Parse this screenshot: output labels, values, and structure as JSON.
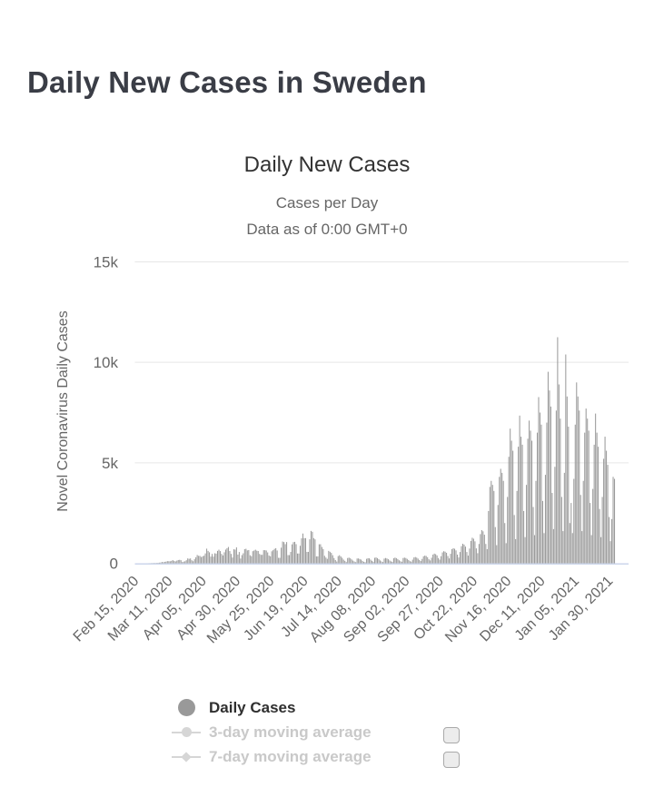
{
  "page": {
    "title": "Daily New Cases in Sweden"
  },
  "chart": {
    "title": "Daily New Cases",
    "subtitle1": "Cases per Day",
    "subtitle2": "Data as of 0:00 GMT+0",
    "y_axis_title": "Novel Coronavirus Daily Cases"
  },
  "legend": {
    "items": [
      {
        "label": "Daily Cases",
        "marker": "circle",
        "enabled": true
      },
      {
        "label": "3-day moving average",
        "marker": "line-circle",
        "enabled": false
      },
      {
        "label": "7-day moving average",
        "marker": "line-diamond",
        "enabled": false
      }
    ]
  },
  "colors": {
    "bar": "#9b9b9b",
    "gridline": "#e6e6e6",
    "axis_line": "#ccd6eb",
    "tick_text": "#666666",
    "title_text": "#333333",
    "page_title_text": "#3a3d46",
    "legend_disabled": "#c9c9c9"
  },
  "chart_data": {
    "type": "bar",
    "title": "Daily New Cases",
    "subtitle": "Cases per Day — Data as of 0:00 GMT+0",
    "xlabel": "",
    "ylabel": "Novel Coronavirus Daily Cases",
    "ylim": [
      0,
      15000
    ],
    "grid": true,
    "legend_position": "bottom",
    "y_tick_values": [
      0,
      5000,
      10000,
      15000
    ],
    "y_tick_labels": [
      "0",
      "5k",
      "10k",
      "15k"
    ],
    "x_tick_interval_days": 25,
    "x_tick_labels": [
      "Feb 15, 2020",
      "Mar 11, 2020",
      "Apr 05, 2020",
      "Apr 30, 2020",
      "May 25, 2020",
      "Jun 19, 2020",
      "Jul 14, 2020",
      "Aug 08, 2020",
      "Sep 02, 2020",
      "Sep 27, 2020",
      "Oct 22, 2020",
      "Nov 16, 2020",
      "Dec 11, 2020",
      "Jan 05, 2021",
      "Jan 30, 2021"
    ],
    "start_date": "Feb 15, 2020",
    "end_date": "Feb 03, 2021",
    "series": [
      {
        "name": "Daily Cases",
        "values": [
          0,
          0,
          0,
          0,
          0,
          0,
          0,
          0,
          0,
          1,
          2,
          5,
          7,
          11,
          12,
          14,
          15,
          21,
          30,
          36,
          64,
          52,
          70,
          80,
          105,
          100,
          97,
          120,
          155,
          110,
          90,
          130,
          160,
          170,
          150,
          60,
          80,
          100,
          150,
          240,
          220,
          240,
          150,
          100,
          200,
          300,
          410,
          370,
          365,
          310,
          345,
          375,
          490,
          725,
          615,
          545,
          330,
          465,
          330,
          495,
          480,
          615,
          675,
          605,
          465,
          390,
          545,
          680,
          750,
          810,
          610,
          465,
          285,
          695,
          680,
          790,
          430,
          560,
          235,
          405,
          495,
          700,
          720,
          640,
          655,
          400,
          350,
          600,
          635,
          675,
          625,
          610,
          465,
          420,
          420,
          650,
          650,
          635,
          540,
          385,
          345,
          595,
          650,
          715,
          750,
          635,
          270,
          270,
          775,
          1080,
          1055,
          950,
          1055,
          405,
          405,
          565,
          940,
          1050,
          1065,
          950,
          485,
          485,
          870,
          1240,
          1480,
          1250,
          1250,
          565,
          565,
          1190,
          1610,
          1565,
          1250,
          1190,
          340,
          340,
          945,
          945,
          810,
          705,
          370,
          285,
          220,
          615,
          570,
          515,
          400,
          260,
          160,
          85,
          355,
          400,
          340,
          270,
          180,
          120,
          60,
          260,
          280,
          245,
          190,
          130,
          85,
          57,
          235,
          240,
          210,
          180,
          110,
          70,
          50,
          220,
          250,
          245,
          180,
          120,
          75,
          270,
          290,
          255,
          205,
          140,
          90,
          60,
          230,
          260,
          240,
          200,
          140,
          95,
          70,
          250,
          280,
          255,
          210,
          150,
          100,
          75,
          260,
          280,
          260,
          215,
          160,
          105,
          80,
          180,
          290,
          310,
          280,
          230,
          160,
          110,
          215,
          345,
          380,
          360,
          300,
          200,
          140,
          275,
          430,
          480,
          450,
          390,
          260,
          180,
          350,
          540,
          600,
          575,
          520,
          360,
          240,
          470,
          700,
          750,
          720,
          640,
          430,
          290,
          560,
          850,
          970,
          930,
          830,
          560,
          380,
          730,
          1110,
          1270,
          1220,
          1090,
          740,
          500,
          960,
          1450,
          1650,
          1590,
          1420,
          960,
          700,
          2600,
          3800,
          4100,
          3900,
          3600,
          1800,
          900,
          2900,
          4300,
          4700,
          4500,
          4100,
          2000,
          1000,
          3300,
          5300,
          6700,
          6100,
          5600,
          2400,
          1200,
          3600,
          5800,
          7350,
          6300,
          5900,
          2600,
          1300,
          3900,
          6200,
          7100,
          6600,
          6100,
          2800,
          1400,
          4100,
          6500,
          8270,
          7500,
          6900,
          3100,
          1500,
          4400,
          7000,
          9530,
          8600,
          7800,
          3500,
          1700,
          4800,
          7600,
          11250,
          8900,
          7200,
          3300,
          1600,
          4500,
          10390,
          8300,
          6800,
          2000,
          3000,
          1500,
          4200,
          6900,
          9000,
          8300,
          7600,
          3400,
          1600,
          4100,
          6500,
          7700,
          7200,
          6600,
          3000,
          1400,
          3700,
          5900,
          7450,
          6500,
          5800,
          2700,
          1300,
          3300,
          5200,
          6300,
          5600,
          4900,
          2300,
          1100,
          2200,
          4300,
          4200
        ]
      }
    ],
    "disabled_series": [
      "3-day moving average",
      "7-day moving average"
    ]
  }
}
